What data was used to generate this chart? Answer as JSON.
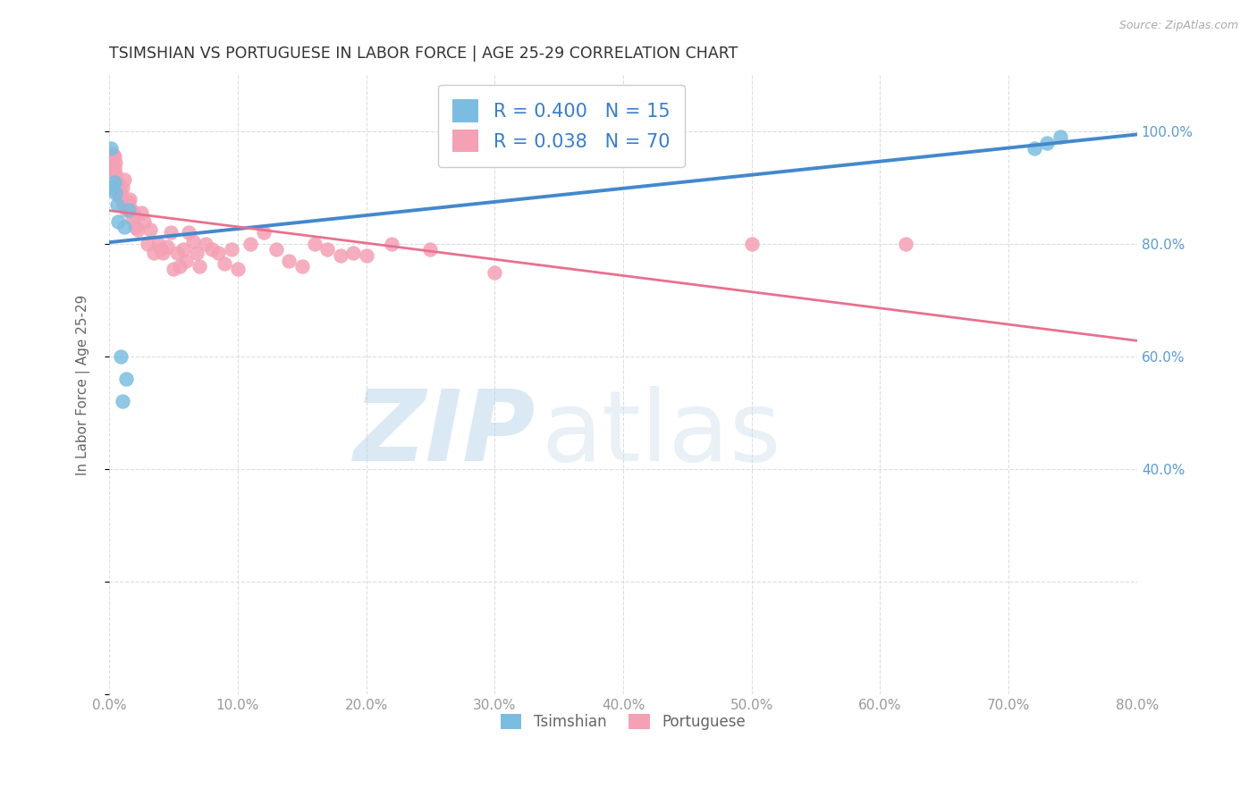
{
  "title": "TSIMSHIAN VS PORTUGUESE IN LABOR FORCE | AGE 25-29 CORRELATION CHART",
  "source": "Source: ZipAtlas.com",
  "ylabel_label": "In Labor Force | Age 25-29",
  "xlim": [
    0.0,
    0.8
  ],
  "ylim": [
    0.0,
    1.1
  ],
  "tsimshian_R": 0.4,
  "tsimshian_N": 15,
  "portuguese_R": 0.038,
  "portuguese_N": 70,
  "tsimshian_color": "#7bbde0",
  "portuguese_color": "#f4a0b5",
  "tsimshian_line_color": "#4488cc",
  "portuguese_line_color": "#e87090",
  "legend_color": "#3a7ec8",
  "background_color": "#ffffff",
  "grid_color": "#dddddd",
  "tsimshian_x": [
    0.001,
    0.002,
    0.003,
    0.004,
    0.005,
    0.006,
    0.007,
    0.009,
    0.01,
    0.012,
    0.013,
    0.015,
    0.72,
    0.73,
    0.74
  ],
  "tsimshian_y": [
    0.97,
    0.9,
    0.9,
    0.91,
    0.89,
    0.87,
    0.84,
    0.6,
    0.52,
    0.83,
    0.56,
    0.86,
    0.97,
    0.98,
    0.99
  ],
  "portuguese_x": [
    0.001,
    0.001,
    0.002,
    0.002,
    0.003,
    0.003,
    0.003,
    0.004,
    0.004,
    0.005,
    0.005,
    0.006,
    0.006,
    0.007,
    0.007,
    0.008,
    0.008,
    0.009,
    0.01,
    0.011,
    0.012,
    0.013,
    0.014,
    0.015,
    0.016,
    0.017,
    0.018,
    0.019,
    0.02,
    0.022,
    0.025,
    0.027,
    0.03,
    0.032,
    0.035,
    0.038,
    0.04,
    0.042,
    0.045,
    0.048,
    0.05,
    0.053,
    0.055,
    0.058,
    0.06,
    0.062,
    0.065,
    0.068,
    0.07,
    0.075,
    0.08,
    0.085,
    0.09,
    0.095,
    0.1,
    0.11,
    0.12,
    0.13,
    0.14,
    0.15,
    0.16,
    0.17,
    0.18,
    0.19,
    0.2,
    0.22,
    0.25,
    0.3,
    0.5,
    0.62
  ],
  "portuguese_y": [
    0.935,
    0.93,
    0.955,
    0.94,
    0.94,
    0.955,
    0.96,
    0.955,
    0.935,
    0.945,
    0.925,
    0.91,
    0.905,
    0.89,
    0.905,
    0.885,
    0.905,
    0.89,
    0.9,
    0.87,
    0.915,
    0.86,
    0.87,
    0.875,
    0.88,
    0.86,
    0.845,
    0.855,
    0.83,
    0.825,
    0.855,
    0.84,
    0.8,
    0.825,
    0.785,
    0.8,
    0.79,
    0.785,
    0.795,
    0.82,
    0.755,
    0.785,
    0.76,
    0.79,
    0.77,
    0.82,
    0.805,
    0.785,
    0.76,
    0.8,
    0.79,
    0.785,
    0.765,
    0.79,
    0.755,
    0.8,
    0.82,
    0.79,
    0.77,
    0.76,
    0.8,
    0.79,
    0.78,
    0.785,
    0.78,
    0.8,
    0.79,
    0.75,
    0.8,
    0.8
  ]
}
